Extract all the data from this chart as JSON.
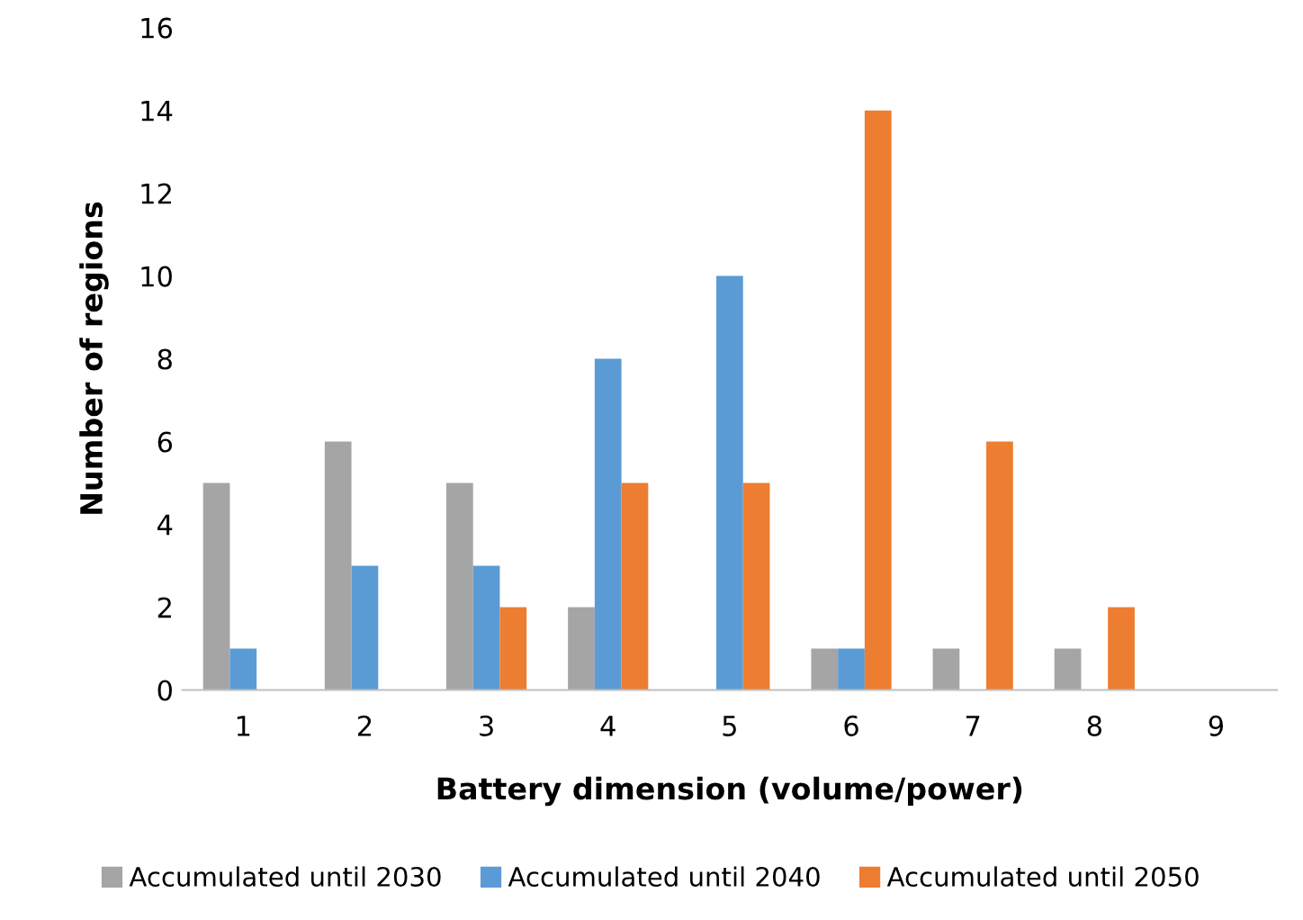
{
  "chart_data": {
    "type": "bar",
    "xlabel": "Battery dimension (volume/power)",
    "ylabel": "Number of regions",
    "categories": [
      "1",
      "2",
      "3",
      "4",
      "5",
      "6",
      "7",
      "8",
      "9"
    ],
    "series": [
      {
        "name": "Accumulated until 2030",
        "color": "#a5a5a5",
        "values": [
          5,
          6,
          5,
          2,
          0,
          1,
          1,
          1,
          0
        ]
      },
      {
        "name": "Accumulated until 2040",
        "color": "#5b9bd5",
        "values": [
          1,
          3,
          3,
          8,
          10,
          1,
          0,
          0,
          0
        ]
      },
      {
        "name": "Accumulated until 2050",
        "color": "#ed7d31",
        "values": [
          0,
          0,
          2,
          5,
          5,
          14,
          6,
          2,
          0
        ]
      }
    ],
    "ylim": [
      0,
      16
    ],
    "yticks": [
      0,
      2,
      4,
      6,
      8,
      10,
      12,
      14,
      16
    ],
    "grid": false,
    "legend": "bottom"
  }
}
